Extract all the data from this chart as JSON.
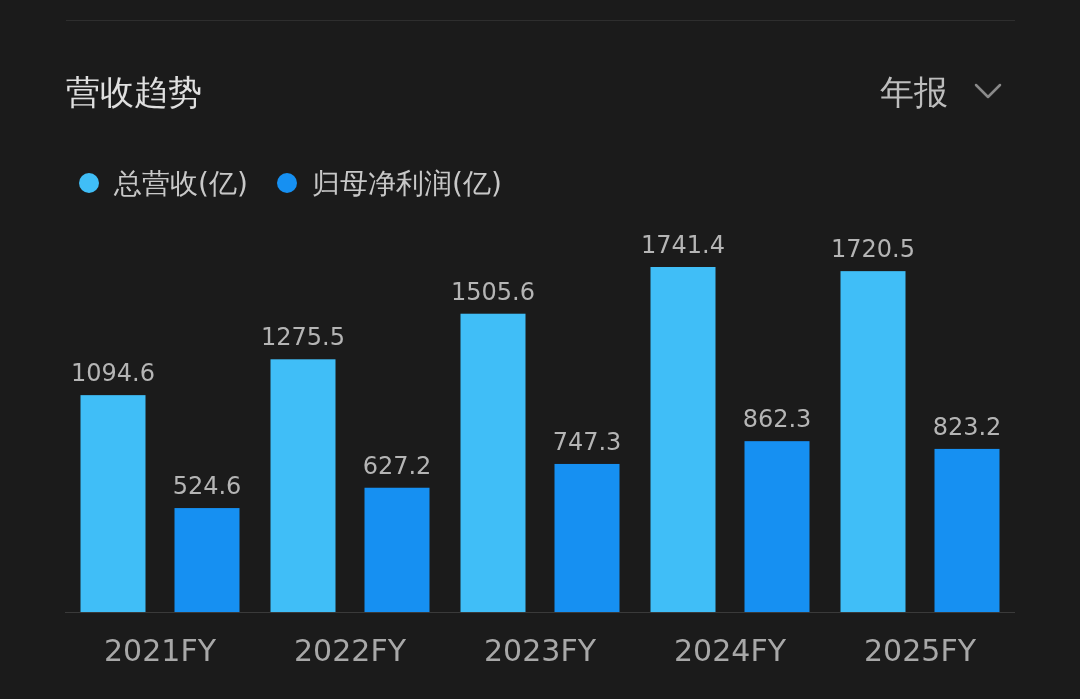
{
  "chart_data": {
    "type": "bar",
    "title": "营收趋势",
    "annotations": [
      "年报"
    ],
    "categories": [
      "2021FY",
      "2022FY",
      "2023FY",
      "2024FY",
      "2025FY"
    ],
    "series": [
      {
        "name": "总营收(亿)",
        "color": "#40bef7",
        "values": [
          1094.6,
          1275.5,
          1505.6,
          1741.4,
          1720.5
        ]
      },
      {
        "name": "归母净利润(亿)",
        "color": "#1690f2",
        "values": [
          524.6,
          627.2,
          747.3,
          862.3,
          823.2
        ]
      }
    ],
    "data_labels": true,
    "legend": "top left",
    "grid": false
  }
}
